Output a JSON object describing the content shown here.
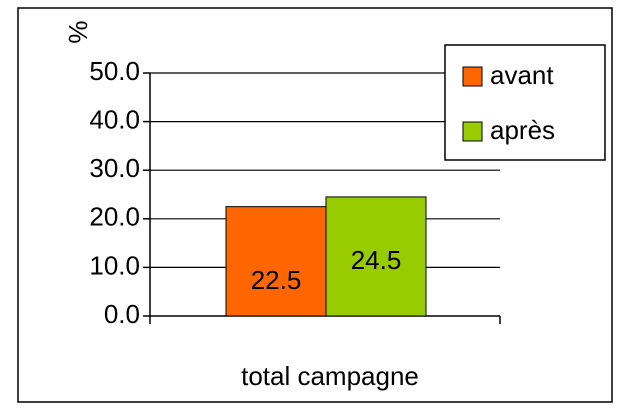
{
  "chart_data": {
    "type": "bar",
    "y_label": "%",
    "categories": [
      "total campagne"
    ],
    "series": [
      {
        "name": "avant",
        "color": "#ff6600",
        "values": [
          22.5
        ]
      },
      {
        "name": "après",
        "color": "#99cc00",
        "values": [
          24.5
        ]
      }
    ],
    "ylim": [
      0,
      50
    ],
    "yticks": [
      {
        "value": 0,
        "label": "0.0"
      },
      {
        "value": 10,
        "label": "10.0"
      },
      {
        "value": 20,
        "label": "20.0"
      },
      {
        "value": 30,
        "label": "30.0"
      },
      {
        "value": 40,
        "label": "40.0"
      },
      {
        "value": 50,
        "label": "50.0"
      }
    ],
    "grid": true,
    "legend": "top-right",
    "data_labels": true
  }
}
